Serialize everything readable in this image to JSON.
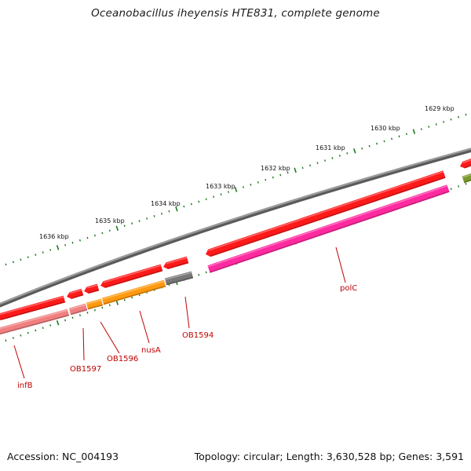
{
  "title": "Oceanobacillus iheyensis HTE831, complete genome",
  "footer": {
    "accession": "Accession: NC_004193",
    "summary": "Topology: circular; Length: 3,630,528 bp; Genes: 3,591"
  },
  "colors": {
    "backbone": "#888888",
    "tick": "#1e7a1e",
    "label": "#c00000",
    "cds": "#ff1a1a",
    "cds_pale": "#f08080",
    "cds_orange": "#ff9a10",
    "cds_gray": "#777777",
    "cds_pink": "#ff2aa0",
    "cds_olive": "#7a9a2a"
  },
  "kbp_ticks": [
    "1629 kbp",
    "1630 kbp",
    "1631 kbp",
    "1632 kbp",
    "1633 kbp",
    "1634 kbp",
    "1635 kbp",
    "1636 kbp"
  ],
  "gene_labels": [
    "polC",
    "OB1594",
    "nusA",
    "OB1596",
    "OB1597",
    "infB"
  ]
}
